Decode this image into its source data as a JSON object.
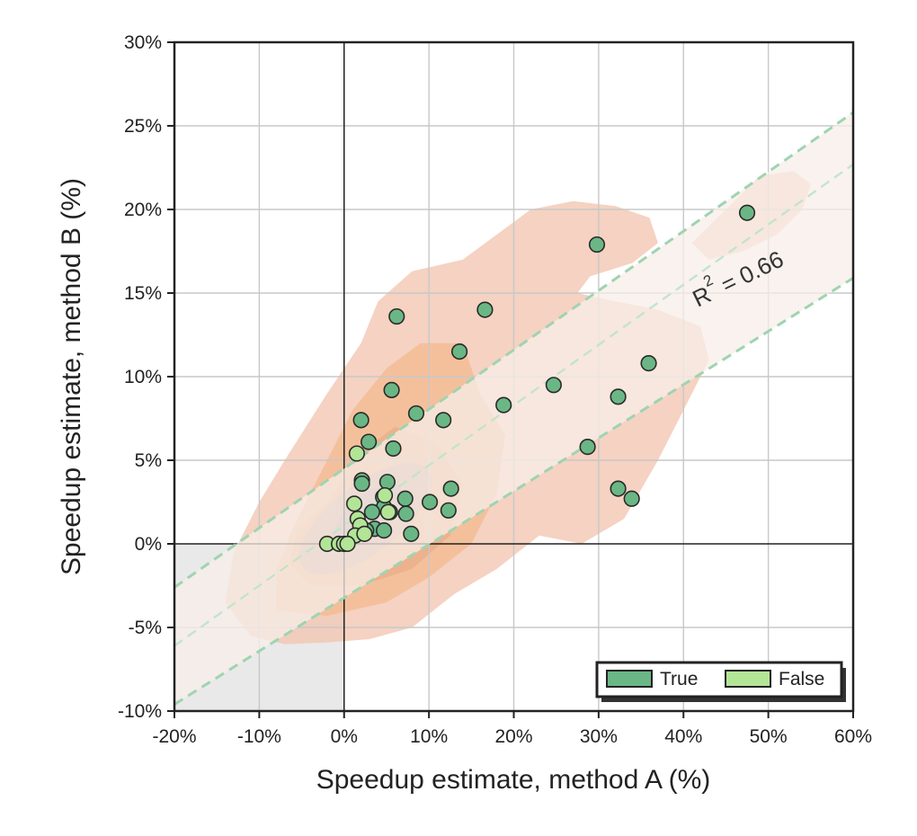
{
  "chart_data": {
    "type": "scatter",
    "xlabel": "Speedup estimate, method A (%)",
    "ylabel": "Speedup estimate, method B (%)",
    "xlim": [
      -20,
      60
    ],
    "ylim": [
      -10,
      30
    ],
    "x_ticks": [
      "-20%",
      "-10%",
      "0%",
      "10%",
      "20%",
      "30%",
      "40%",
      "50%",
      "60%"
    ],
    "y_ticks": [
      "-10%",
      "-5%",
      "0%",
      "5%",
      "10%",
      "15%",
      "20%",
      "25%",
      "30%"
    ],
    "grid": true,
    "legend_placement": "lower-right",
    "annotation": {
      "base": "R",
      "sup": "2",
      "rest": " = 0.66"
    },
    "fit": {
      "intercept": 1.1,
      "slope": 0.36
    },
    "series": [
      {
        "name": "True",
        "color": "#6ab785",
        "points": [
          [
            47.5,
            19.8
          ],
          [
            29.8,
            17.9
          ],
          [
            16.6,
            14.0
          ],
          [
            6.2,
            13.6
          ],
          [
            13.6,
            11.5
          ],
          [
            35.9,
            10.8
          ],
          [
            24.7,
            9.5
          ],
          [
            5.6,
            9.2
          ],
          [
            32.3,
            8.8
          ],
          [
            18.8,
            8.3
          ],
          [
            8.5,
            7.8
          ],
          [
            11.7,
            7.4
          ],
          [
            2.0,
            7.4
          ],
          [
            2.9,
            6.1
          ],
          [
            5.8,
            5.7
          ],
          [
            28.7,
            5.8
          ],
          [
            2.1,
            3.8
          ],
          [
            2.1,
            3.6
          ],
          [
            5.1,
            3.7
          ],
          [
            12.6,
            3.3
          ],
          [
            32.3,
            3.3
          ],
          [
            33.9,
            2.7
          ],
          [
            4.6,
            2.8
          ],
          [
            7.2,
            2.7
          ],
          [
            10.1,
            2.5
          ],
          [
            4.7,
            2.2
          ],
          [
            5.4,
            1.9
          ],
          [
            3.3,
            1.9
          ],
          [
            12.3,
            2.0
          ],
          [
            7.3,
            1.8
          ],
          [
            7.9,
            0.6
          ],
          [
            3.6,
            0.9
          ],
          [
            4.7,
            0.8
          ],
          [
            2.6,
            0.8
          ]
        ]
      },
      {
        "name": "False",
        "color": "#b3e597",
        "points": [
          [
            1.5,
            5.4
          ],
          [
            1.2,
            2.4
          ],
          [
            4.8,
            2.9
          ],
          [
            5.2,
            1.9
          ],
          [
            1.6,
            1.5
          ],
          [
            1.9,
            1.1
          ],
          [
            1.3,
            0.5
          ],
          [
            2.4,
            0.6
          ],
          [
            -2.0,
            0.0
          ],
          [
            -0.6,
            0.0
          ],
          [
            0.0,
            0.0
          ],
          [
            0.4,
            0.0
          ]
        ]
      }
    ]
  }
}
